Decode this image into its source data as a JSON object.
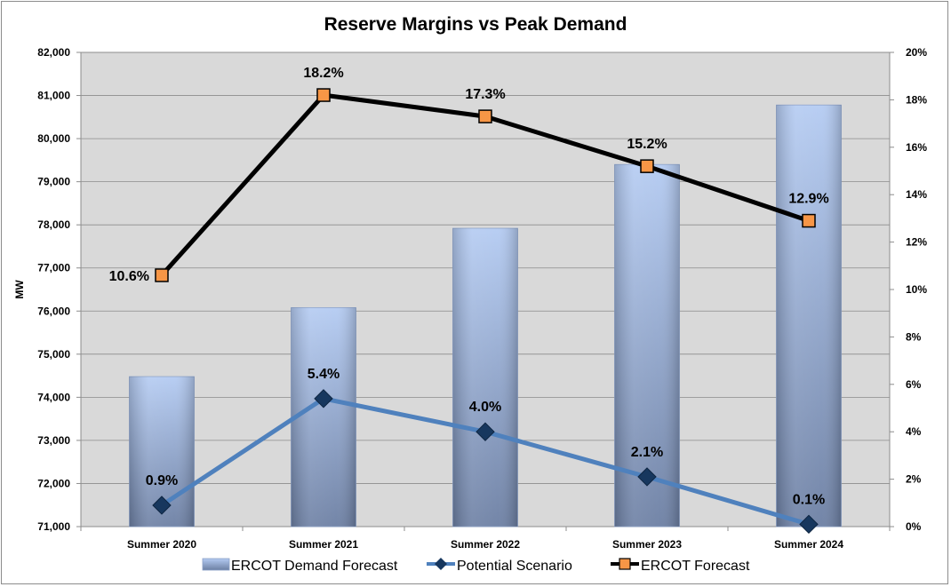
{
  "chart_data": {
    "type": "bar",
    "title": "Reserve Margins vs Peak Demand",
    "ylabel": "MW",
    "y2label": "",
    "categories": [
      "Summer 2020",
      "Summer 2021",
      "Summer 2022",
      "Summer 2023",
      "Summer 2024"
    ],
    "ylim": [
      71000,
      82000
    ],
    "y2lim": [
      0,
      20
    ],
    "y_ticks": [
      "71,000",
      "72,000",
      "73,000",
      "74,000",
      "75,000",
      "76,000",
      "77,000",
      "78,000",
      "79,000",
      "80,000",
      "81,000",
      "82,000"
    ],
    "y2_ticks": [
      "0%",
      "2%",
      "4%",
      "6%",
      "8%",
      "10%",
      "12%",
      "14%",
      "16%",
      "18%",
      "20%"
    ],
    "grid": true,
    "legend_position": "bottom",
    "series": [
      {
        "name": "ERCOT Demand Forecast",
        "type": "bar",
        "axis": "left",
        "values": [
          74480,
          76080,
          77920,
          79400,
          80780
        ],
        "color": "#a9bfe8"
      },
      {
        "name": "Potential Scenario",
        "type": "line",
        "axis": "right",
        "marker": "diamond",
        "values": [
          0.9,
          5.4,
          4.0,
          2.1,
          0.1
        ],
        "labels": [
          "0.9%",
          "5.4%",
          "4.0%",
          "2.1%",
          "0.1%"
        ],
        "color": "#4f81bd",
        "marker_color": "#17375e"
      },
      {
        "name": "ERCOT Forecast",
        "type": "line",
        "axis": "right",
        "marker": "square",
        "values": [
          10.6,
          18.2,
          17.3,
          15.2,
          12.9
        ],
        "labels": [
          "10.6%",
          "18.2%",
          "17.3%",
          "15.2%",
          "12.9%"
        ],
        "color": "#000000",
        "marker_color": "#f79646"
      }
    ]
  }
}
